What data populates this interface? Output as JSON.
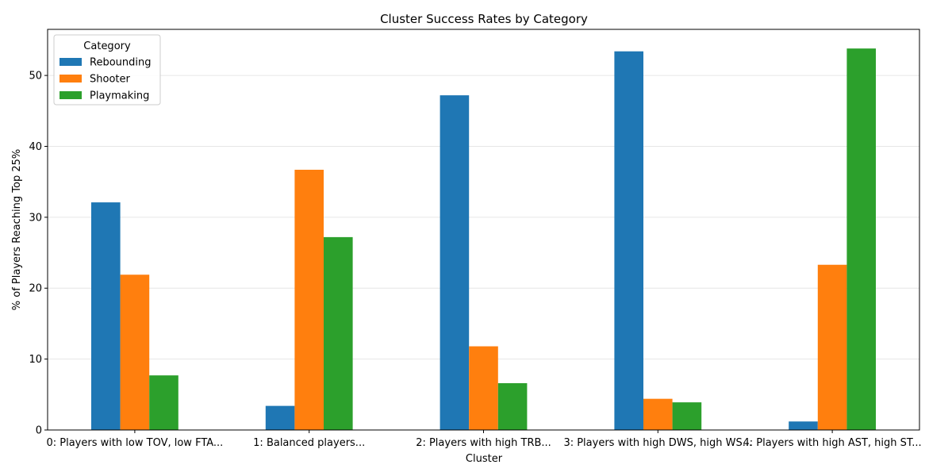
{
  "chart_data": {
    "type": "bar",
    "title": "Cluster Success Rates by Category",
    "xlabel": "Cluster",
    "ylabel": "% of Players Reaching Top 25%",
    "categories": [
      "0: Players with low TOV, low FTA...",
      "1: Balanced players...",
      "2: Players with high TRB...",
      "3: Players with high DWS, high WS...",
      "4: Players with high AST, high ST..."
    ],
    "series": [
      {
        "name": "Rebounding",
        "color": "#1f77b4",
        "values": [
          32.1,
          3.4,
          47.2,
          53.4,
          1.2
        ]
      },
      {
        "name": "Shooter",
        "color": "#ff7f0e",
        "values": [
          21.9,
          36.7,
          11.8,
          4.4,
          23.3
        ]
      },
      {
        "name": "Playmaking",
        "color": "#2ca02c",
        "values": [
          7.7,
          27.2,
          6.6,
          3.9,
          53.8
        ]
      }
    ],
    "legend_title": "Category",
    "legend_position": "top-left",
    "ylim": [
      0,
      56.5
    ],
    "yticks": [
      0,
      10,
      20,
      30,
      40,
      50
    ],
    "grid": "y"
  }
}
